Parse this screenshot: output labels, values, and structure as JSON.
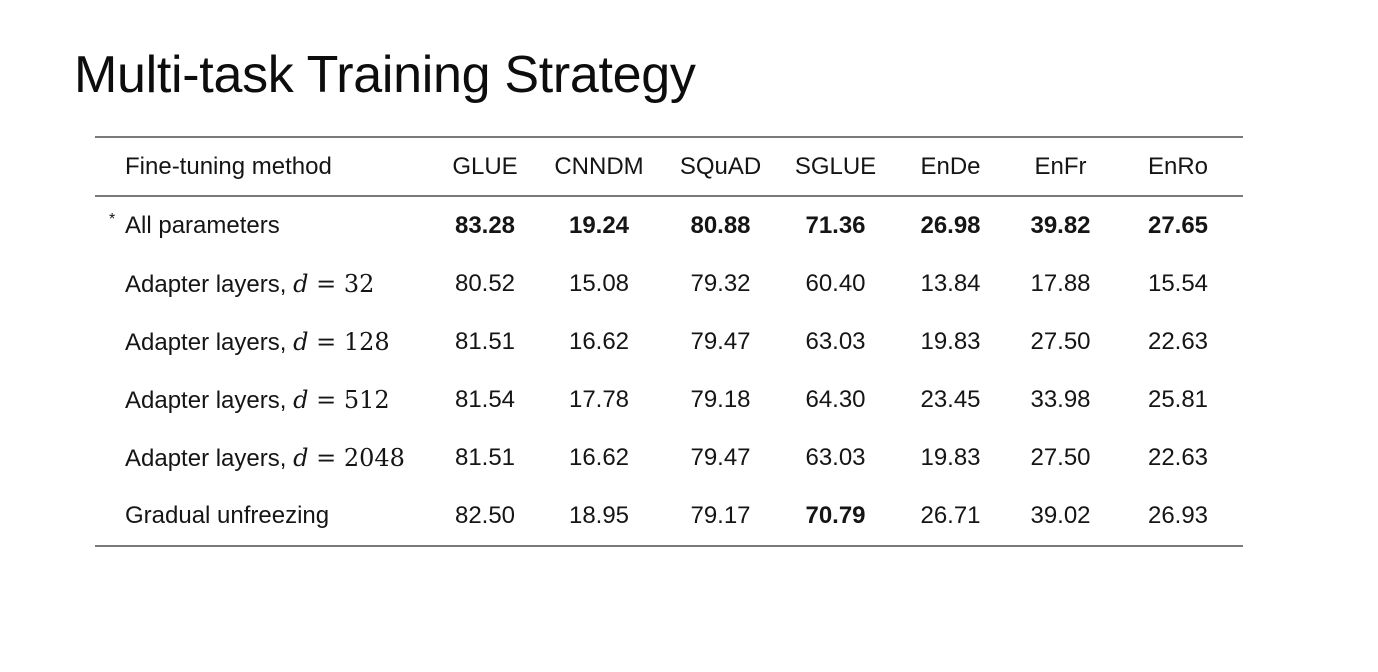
{
  "title": "Multi-task Training Strategy",
  "table": {
    "headers": [
      "Fine-tuning method",
      "GLUE",
      "CNNDM",
      "SQuAD",
      "SGLUE",
      "EnDe",
      "EnFr",
      "EnRo"
    ],
    "rows": [
      {
        "marker": "*",
        "method": "All parameters",
        "values": [
          "83.28",
          "19.24",
          "80.88",
          "71.36",
          "26.98",
          "39.82",
          "27.65"
        ],
        "bold": [
          true,
          true,
          true,
          true,
          true,
          true,
          true
        ]
      },
      {
        "method": "Adapter layers, ",
        "math_var": "d",
        "math_eq": " = ",
        "math_val": "32",
        "values": [
          "80.52",
          "15.08",
          "79.32",
          "60.40",
          "13.84",
          "17.88",
          "15.54"
        ],
        "bold": [
          false,
          false,
          false,
          false,
          false,
          false,
          false
        ]
      },
      {
        "method": "Adapter layers, ",
        "math_var": "d",
        "math_eq": " = ",
        "math_val": "128",
        "values": [
          "81.51",
          "16.62",
          "79.47",
          "63.03",
          "19.83",
          "27.50",
          "22.63"
        ],
        "bold": [
          false,
          false,
          false,
          false,
          false,
          false,
          false
        ]
      },
      {
        "method": "Adapter layers, ",
        "math_var": "d",
        "math_eq": " = ",
        "math_val": "512",
        "values": [
          "81.54",
          "17.78",
          "79.18",
          "64.30",
          "23.45",
          "33.98",
          "25.81"
        ],
        "bold": [
          false,
          false,
          false,
          false,
          false,
          false,
          false
        ]
      },
      {
        "method": "Adapter layers, ",
        "math_var": "d",
        "math_eq": " = ",
        "math_val": "2048",
        "values": [
          "81.51",
          "16.62",
          "79.47",
          "63.03",
          "19.83",
          "27.50",
          "22.63"
        ],
        "bold": [
          false,
          false,
          false,
          false,
          false,
          false,
          false
        ]
      },
      {
        "method": "Gradual unfreezing",
        "values": [
          "82.50",
          "18.95",
          "79.17",
          "70.79",
          "26.71",
          "39.02",
          "26.93"
        ],
        "bold": [
          false,
          false,
          false,
          true,
          false,
          false,
          false
        ]
      }
    ]
  }
}
